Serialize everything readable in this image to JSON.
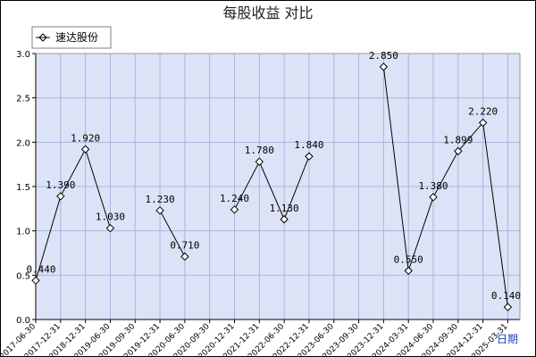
{
  "chart_data": {
    "type": "line",
    "title": "每股收益  对比",
    "xlabel": "日期",
    "ylabel": "",
    "ylim": [
      0,
      3.0
    ],
    "yticks": [
      "0.0",
      "0.5",
      "1.0",
      "1.5",
      "2.0",
      "2.5",
      "3.0"
    ],
    "grid": true,
    "legend_position": "top-left",
    "colors": {
      "plot_bg": "#dde3f7",
      "grid": "#aab4dd",
      "line": "#000000",
      "axis": "#000000"
    },
    "categories": [
      "2017-06-30",
      "2017-12-31",
      "2018-12-31",
      "2019-06-30",
      "2019-09-30",
      "2019-12-31",
      "2020-06-30",
      "2020-09-30",
      "2020-12-31",
      "2021-12-31",
      "2022-06-30",
      "2022-12-31",
      "2023-06-30",
      "2023-09-30",
      "2023-12-31",
      "2024-03-31",
      "2024-06-30",
      "2024-09-30",
      "2024-12-31",
      "2025-03-31"
    ],
    "series": [
      {
        "name": "速达股份",
        "values": [
          0.44,
          1.39,
          1.92,
          1.03,
          null,
          1.23,
          0.71,
          null,
          1.24,
          1.78,
          1.13,
          1.84,
          null,
          null,
          2.85,
          0.55,
          1.38,
          1.899,
          2.22,
          0.14
        ],
        "labels": [
          "0.440",
          "1.390",
          "1.920",
          "1.030",
          "",
          "1.230",
          "0.710",
          "",
          "1.240",
          "1.780",
          "1.130",
          "1.840",
          "",
          "",
          "2.850",
          "0.550",
          "1.380",
          "1.899",
          "2.220",
          "0.140"
        ]
      }
    ]
  }
}
